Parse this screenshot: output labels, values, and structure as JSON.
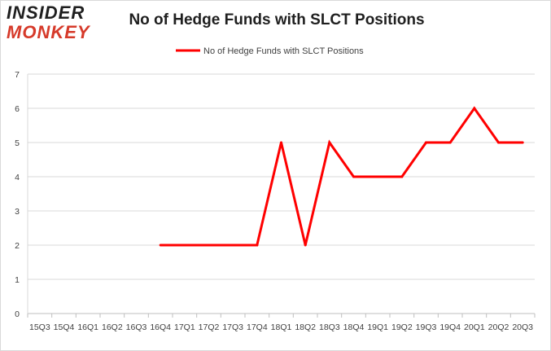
{
  "logo": {
    "line1": "INSIDER",
    "line2": "MONKEY"
  },
  "colors": {
    "series": "#ff0000",
    "grid": "#d9d9d9",
    "axis": "#bfbfbf"
  },
  "chart_data": {
    "type": "line",
    "title": "No of Hedge Funds with SLCT Positions",
    "legend_position": "top-center",
    "grid": true,
    "ylim": [
      0,
      7
    ],
    "yticks": [
      0,
      1,
      2,
      3,
      4,
      5,
      6,
      7
    ],
    "categories": [
      "15Q3",
      "15Q4",
      "16Q1",
      "16Q2",
      "16Q3",
      "16Q4",
      "17Q1",
      "17Q2",
      "17Q3",
      "17Q4",
      "18Q1",
      "18Q2",
      "18Q3",
      "18Q4",
      "19Q1",
      "19Q2",
      "19Q3",
      "19Q4",
      "20Q1",
      "20Q2",
      "20Q3"
    ],
    "series": [
      {
        "name": "No of Hedge Funds with SLCT Positions",
        "values": [
          null,
          null,
          null,
          null,
          null,
          2,
          2,
          2,
          2,
          2,
          5,
          2,
          5,
          4,
          4,
          4,
          5,
          5,
          6,
          5,
          5
        ]
      }
    ]
  }
}
